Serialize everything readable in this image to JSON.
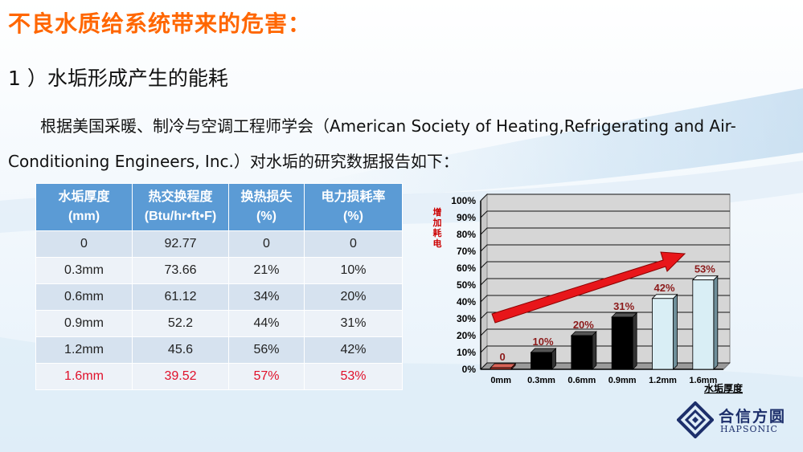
{
  "title": "不良水质给系统带来的危害：",
  "subtitle": "1 ）水垢形成产生的能耗",
  "paragraph": "根据美国采暖、制冷与空调工程师学会（American Society of Heating,Refrigerating and Air-Conditioning Engineers, Inc.）对水垢的研究数据报告如下：",
  "table": {
    "headers": [
      [
        "水垢厚度",
        "(mm)"
      ],
      [
        "热交换程度",
        "(Btu/hr•ft•F)"
      ],
      [
        "换热损失",
        "(%)"
      ],
      [
        "电力损耗率",
        "(%)"
      ]
    ],
    "rows": [
      [
        "0",
        "92.77",
        "0",
        "0"
      ],
      [
        "0.3mm",
        "73.66",
        "21%",
        "10%"
      ],
      [
        "0.6mm",
        "61.12",
        "34%",
        "20%"
      ],
      [
        "0.9mm",
        "52.2",
        "44%",
        "31%"
      ],
      [
        "1.2mm",
        "45.6",
        "56%",
        "42%"
      ],
      [
        "1.6mm",
        "39.52",
        "57%",
        "53%"
      ]
    ]
  },
  "chart_data": {
    "type": "bar",
    "categories": [
      "0mm",
      "0.3mm",
      "0.6mm",
      "0.9mm",
      "1.2mm",
      "1.6mm"
    ],
    "values": [
      0,
      10,
      20,
      31,
      42,
      53
    ],
    "value_labels": [
      "0",
      "10%",
      "20%",
      "31%",
      "42%",
      "53%"
    ],
    "xlabel": "水垢厚度",
    "ylabel": "增加耗电",
    "ylim": [
      0,
      100
    ],
    "yticks": [
      "0%",
      "10%",
      "20%",
      "30%",
      "40%",
      "50%",
      "60%",
      "70%",
      "80%",
      "90%",
      "100%"
    ],
    "grid": true,
    "colors": {
      "bar_dark": "#000000",
      "bar_light": "#d9eef5",
      "bar_zero": "#c0392b",
      "label": "#8b1a1a",
      "arrow": "#e8161a"
    }
  },
  "logo": {
    "cn": "合信方圆",
    "en": "HAPSONIC"
  }
}
